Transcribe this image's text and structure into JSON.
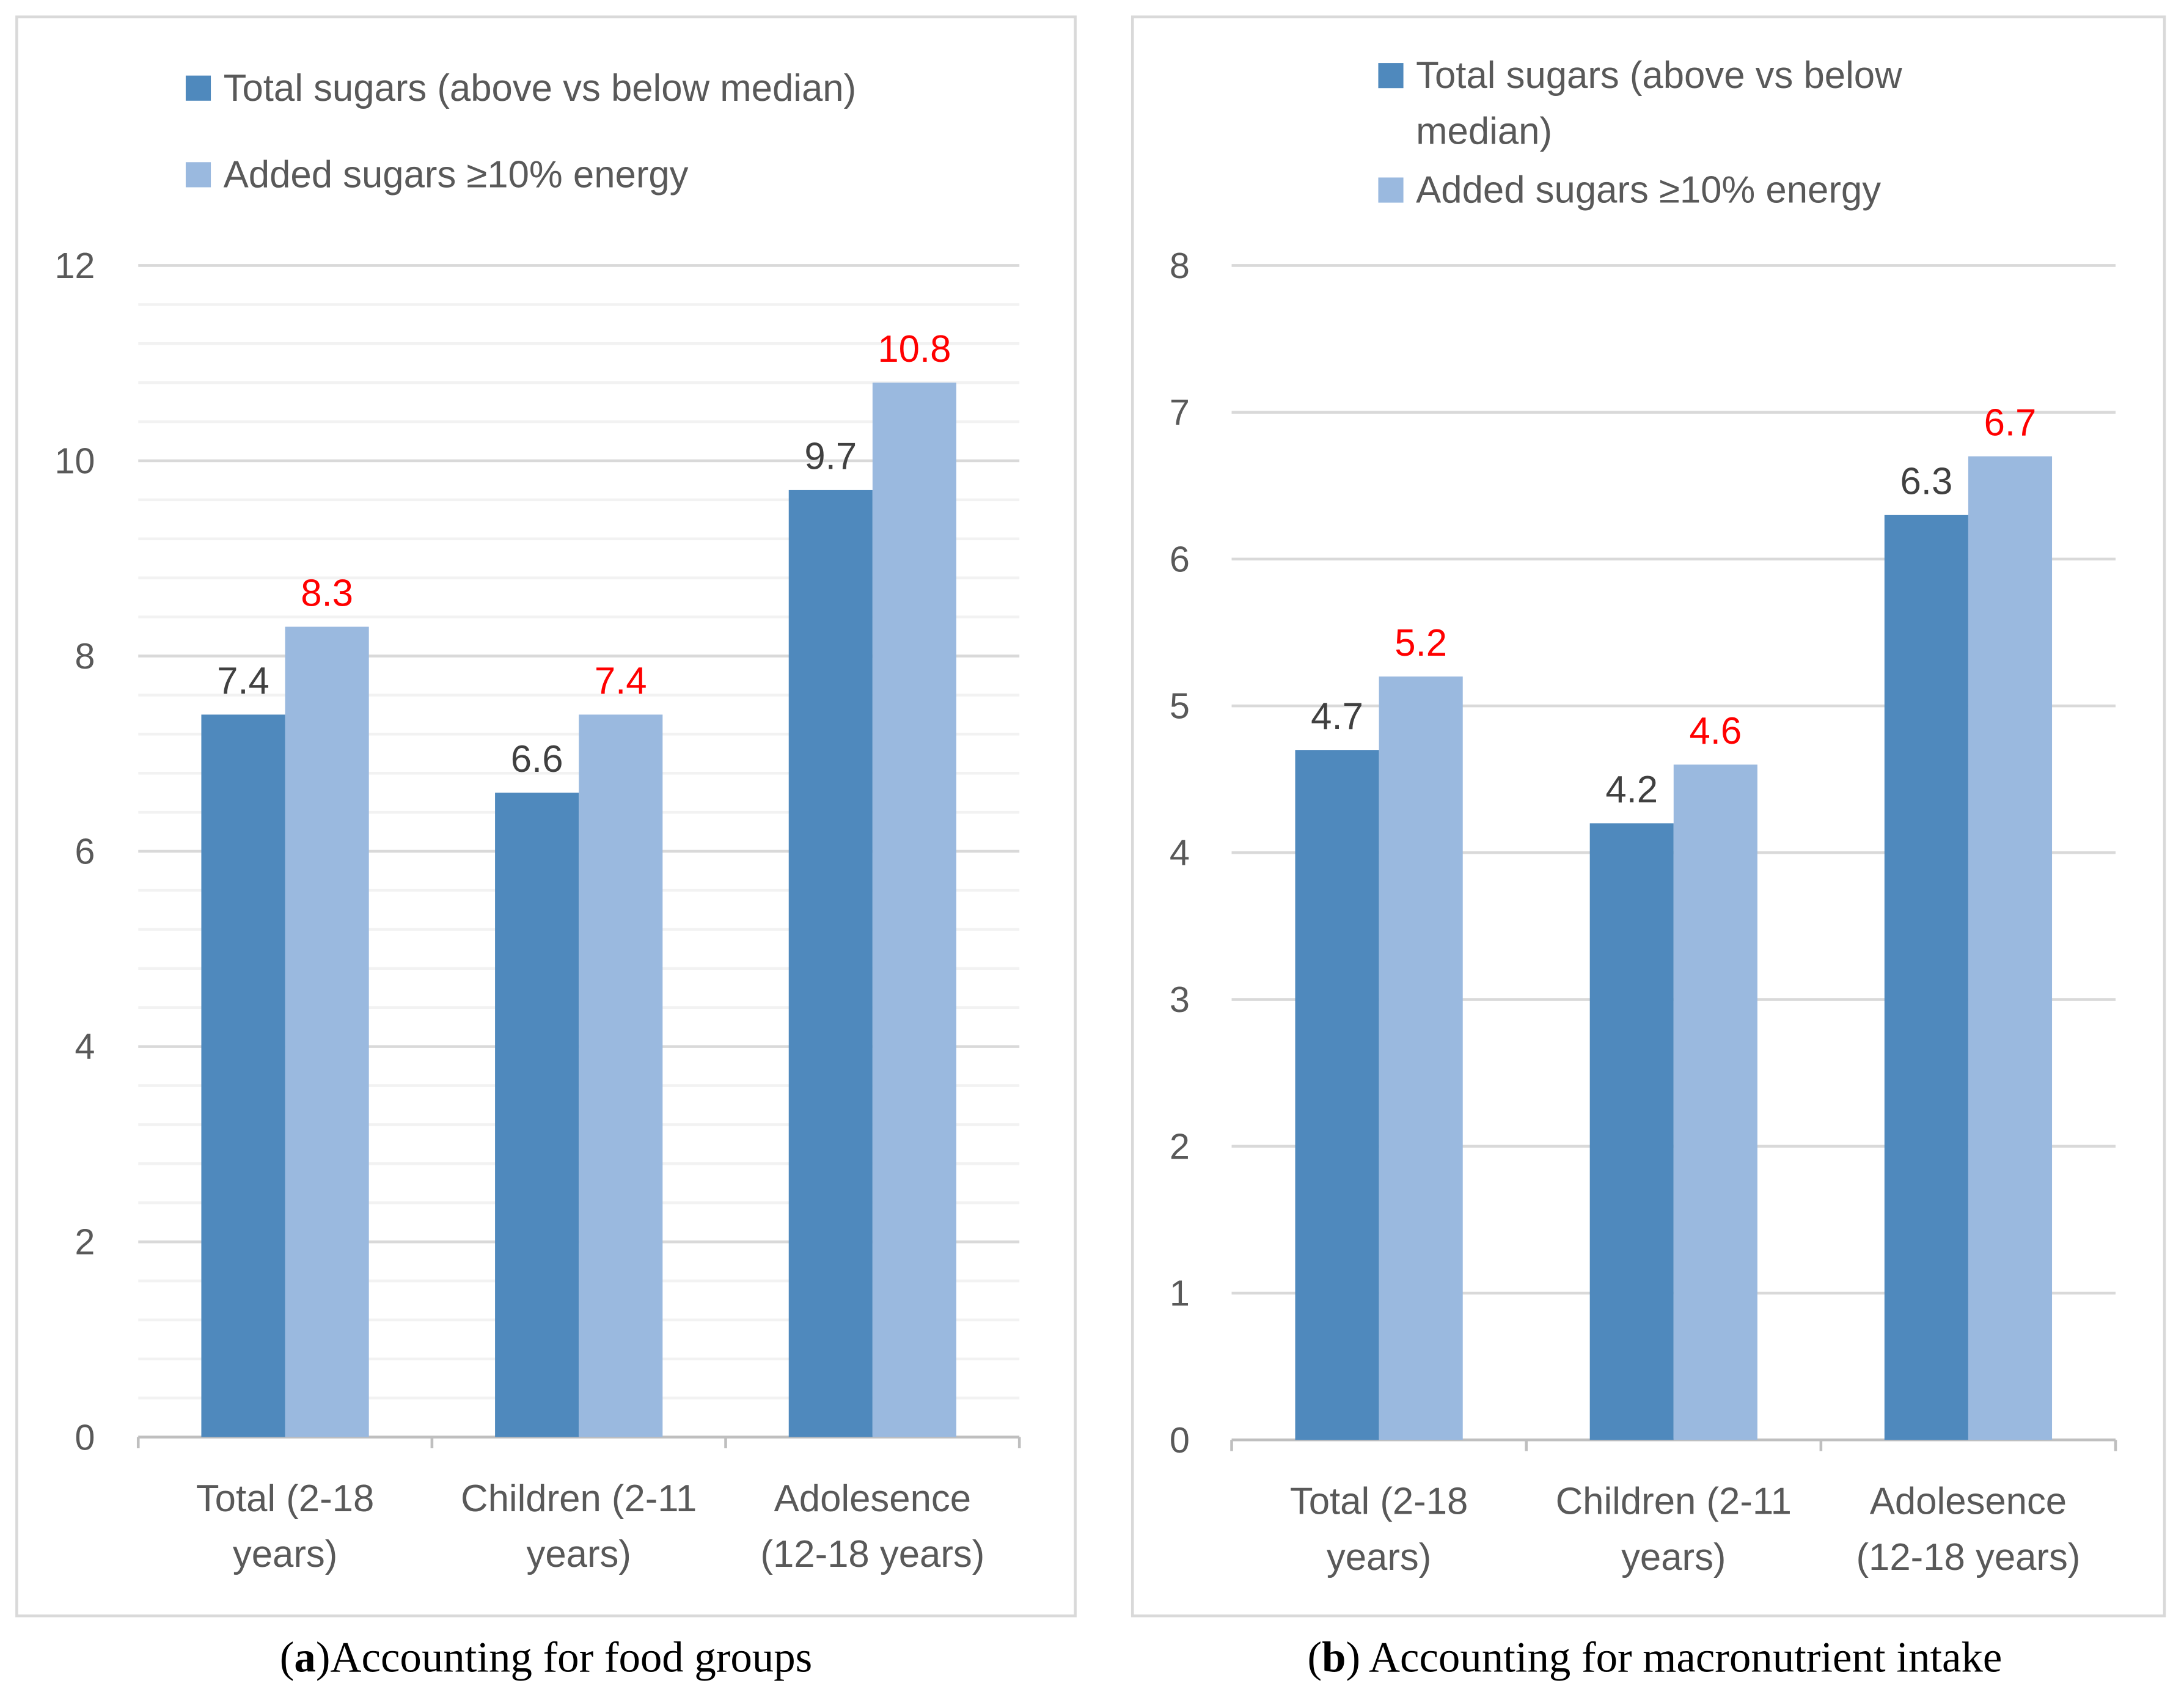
{
  "colors": {
    "series1": "#4F89BD",
    "series2": "#9AB9DF",
    "label1": "#404040",
    "label2": "#FF0000",
    "grid_major": "#D9D9D9",
    "grid_minor": "#F2F2F2"
  },
  "chart_data": [
    {
      "type": "bar",
      "caption_letter": "a",
      "caption_text": "Accounting for food groups",
      "categories": [
        [
          "Total  (2-18",
          "years)"
        ],
        [
          "Children (2-11",
          "years)"
        ],
        [
          "Adolesence",
          "(12-18 years)"
        ]
      ],
      "series": [
        {
          "name": "Total sugars (above vs below median)",
          "legend_lines": [
            "Total sugars (above vs below median)"
          ],
          "values": [
            7.4,
            6.6,
            9.7
          ]
        },
        {
          "name": "Added sugars ≥10% energy",
          "legend_lines": [
            "Added sugars ≥10% energy"
          ],
          "values": [
            8.3,
            7.4,
            10.8
          ]
        }
      ],
      "ylim": [
        0,
        12
      ],
      "yticks": [
        "0",
        "2",
        "4",
        "6",
        "8",
        "10",
        "12"
      ],
      "ytick_step": 2,
      "minor_step": 0.4,
      "legend": "top",
      "grid": true
    },
    {
      "type": "bar",
      "caption_letter": "b",
      "caption_text": " Accounting for macronutrient intake",
      "categories": [
        [
          "Total  (2-18",
          "years)"
        ],
        [
          "Children (2-11",
          "years)"
        ],
        [
          "Adolesence",
          "(12-18 years)"
        ]
      ],
      "series": [
        {
          "name": "Total sugars (above vs below median)",
          "legend_lines": [
            "Total sugars (above vs below",
            "median)"
          ],
          "values": [
            4.7,
            4.2,
            6.3
          ]
        },
        {
          "name": "Added sugars ≥10% energy",
          "legend_lines": [
            "Added sugars ≥10% energy"
          ],
          "values": [
            5.2,
            4.6,
            6.7
          ]
        }
      ],
      "ylim": [
        0,
        8
      ],
      "yticks": [
        "0",
        "1",
        "2",
        "3",
        "4",
        "5",
        "6",
        "7",
        "8"
      ],
      "ytick_step": 1,
      "minor_step": null,
      "legend": "top",
      "grid": true
    }
  ]
}
